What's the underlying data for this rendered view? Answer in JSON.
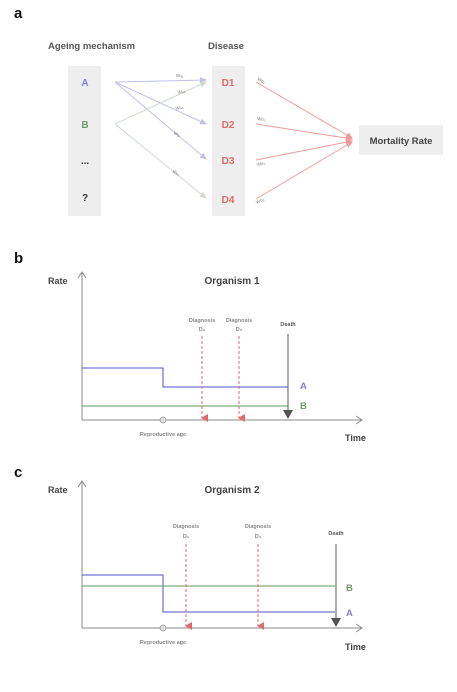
{
  "colors": {
    "A": "#8080d8",
    "B": "#6e9a6e",
    "disease": "#e06a6a",
    "box": "#eeeeee",
    "axis": "#8a8a8a",
    "death": "#555555",
    "arrowA": "#c0c0e8",
    "arrowB": "#cfd8cf",
    "arrowD": "#ef9a9a",
    "lineA": "#5050c8",
    "lineB": "#5e9a5e"
  },
  "panel_a": {
    "letter": "a",
    "mechanism_header": "Ageing mechanism",
    "disease_header": "Disease",
    "mechanisms": [
      "A",
      "B",
      "...",
      "?"
    ],
    "diseases": [
      "D1",
      "D2",
      "D3",
      "D4"
    ],
    "mortality_label": "Mortality Rate",
    "weights_mech": [
      "Wₐ₁",
      "Wₐ₂",
      "Wₐ₄",
      "Wᵦ₂",
      "Wᵦ₃"
    ],
    "weights_dis": [
      "Wᴅ₁",
      "Wᴅ₂",
      "Wᴅ₃",
      "Wᴅ₄"
    ]
  },
  "panel_b": {
    "letter": "b",
    "title": "Organism 1",
    "ylabel": "Rate",
    "xlabel": "Time",
    "reproductive_label": "Reproductive age",
    "diagnoses": [
      {
        "line1": "Diagnosis",
        "line2": "D₂"
      },
      {
        "line1": "Diagnosis",
        "line2": "D₃"
      }
    ],
    "death_label": "Death",
    "series_a_label": "A",
    "series_b_label": "B"
  },
  "panel_c": {
    "letter": "c",
    "title": "Organism 2",
    "ylabel": "Rate",
    "xlabel": "Time",
    "reproductive_label": "Reproductive age",
    "diagnoses": [
      {
        "line1": "Diagnosis",
        "line2": "D₁"
      },
      {
        "line1": "Diagnosis",
        "line2": "D₄"
      }
    ],
    "death_label": "Death",
    "series_a_label": "A",
    "series_b_label": "B"
  }
}
